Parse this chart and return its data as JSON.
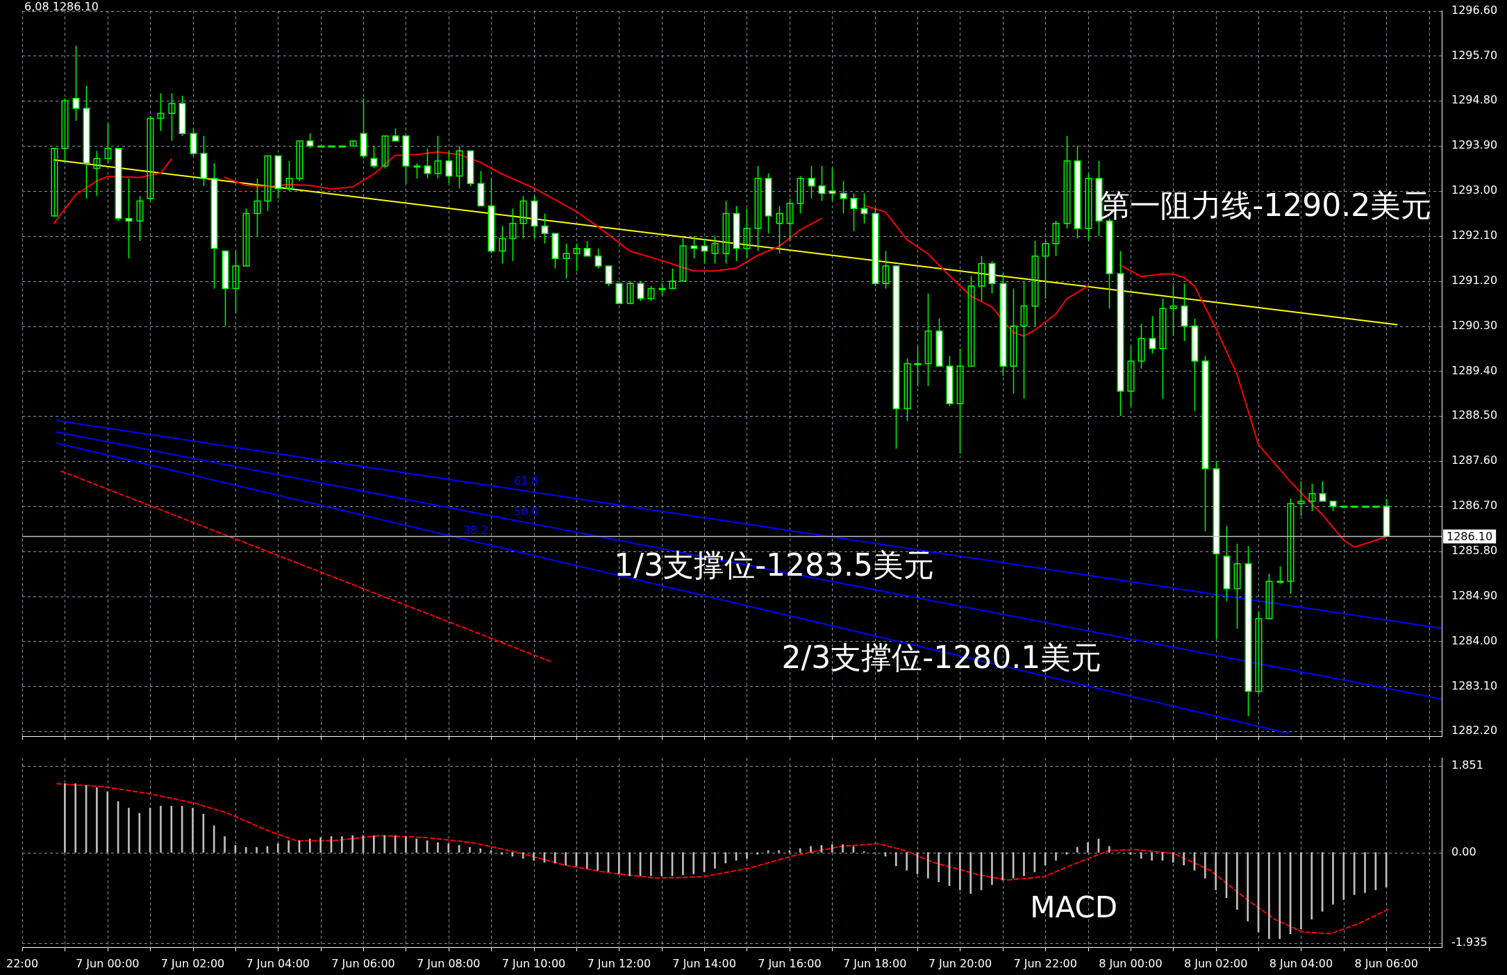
{
  "chart_data": [
    {
      "type": "candlestick",
      "color": "#00ff00",
      "colors": [
        "#00ff00",
        "#00ff00",
        "#ffffff",
        "#ffffff",
        "#00ff00",
        "#00ff00",
        "#ffffff",
        "#ffffff",
        "#00ff00",
        "#00ff00",
        "#00ff00",
        "#00ff00",
        "#ffffff",
        "#ffffff",
        "#ffffff",
        "#ffffff",
        "#ffffff",
        "#00ff00",
        "#00ff00",
        "#00ff00",
        "#00ff00",
        "#ffffff",
        "#00ff00",
        "#00ff00",
        "#ffffff",
        "#00ff00",
        "#00ff00",
        "#00ff00",
        "#00ff00",
        "#ffffff",
        "#ffffff",
        "#00ff00",
        "#ffffff",
        "#ffffff",
        "#00ff00",
        "#ffffff",
        "#00ff00",
        "#ffffff",
        "#00ff00",
        "#ffffff",
        "#ffffff",
        "#ffffff",
        "#00ff00",
        "#00ff00",
        "#00ff00",
        "#ffffff",
        "#ffffff",
        "#ffffff",
        "#00ff00",
        "#00ff00",
        "#ffffff",
        "#ffffff",
        "#ffffff",
        "#ffffff",
        "#00ff00",
        "#ffffff",
        "#00ff00",
        "#00ff00",
        "#00ff00",
        "#00ff00",
        "#ffffff",
        "#ffffff",
        "#00ff00",
        "#00ff00",
        "#ffffff",
        "#00ff00",
        "#00ff00",
        "#ffffff",
        "#00ff00",
        "#00ff00",
        "#00ff00",
        "#ffffff",
        "#ffffff",
        "#ffffff",
        "#ffffff",
        "#ffffff",
        "#ffffff",
        "#ffffff",
        "#00ff00",
        "#ffffff",
        "#00ff00",
        "#00ff00",
        "#00ff00",
        "#ffffff",
        "#ffffff",
        "#00ff00",
        "#00ff00",
        "#00ff00",
        "#ffffff",
        "#ffffff",
        "#00ff00",
        "#00ff00",
        "#00ff00",
        "#00ff00",
        "#00ff00",
        "#00ff00",
        "#ffffff",
        "#00ff00",
        "#ffffff",
        "#ffffff",
        "#ffffff",
        "#00ff00",
        "#00ff00",
        "#ffffff",
        "#00ff00",
        "#00ff00",
        "#ffffff",
        "#ffffff",
        "#ffffff",
        "#ffffff",
        "#ffffff",
        "#00ff00",
        "#ffffff",
        "#00ff00",
        "#00ff00",
        "#00ff00",
        "#00ff00",
        "#00ff00",
        "#00ff00",
        "#ffffff",
        "#ffffff",
        "#00ff00",
        "#00ff00",
        "#00ff00",
        "#00ff00",
        "#ffffff"
      ],
      "x": [
        "--06-06T22:45",
        "--06-06T23:00",
        "--06-06T23:15",
        "--06-06T23:30",
        "--06-06T23:45",
        "--06-07T00:00",
        "--06-07T00:15",
        "--06-07T00:30",
        "--06-07T00:45",
        "--06-07T01:00",
        "--06-07T01:15",
        "--06-07T01:30",
        "--06-07T01:45",
        "--06-07T02:00",
        "--06-07T02:15",
        "--06-07T02:30",
        "--06-07T02:45",
        "--06-07T03:00",
        "--06-07T03:15",
        "--06-07T03:30",
        "--06-07T03:45",
        "--06-07T04:00",
        "--06-07T04:15",
        "--06-07T04:30",
        "--06-07T04:45",
        "--06-07T05:00",
        "--06-07T05:15",
        "--06-07T05:30",
        "--06-07T05:45",
        "--06-07T06:00",
        "--06-07T06:15",
        "--06-07T06:30",
        "--06-07T06:45",
        "--06-07T07:00",
        "--06-07T07:15",
        "--06-07T07:30",
        "--06-07T07:45",
        "--06-07T08:00",
        "--06-07T08:15",
        "--06-07T08:30",
        "--06-07T08:45",
        "--06-07T09:00",
        "--06-07T09:15",
        "--06-07T09:30",
        "--06-07T09:45",
        "--06-07T10:00",
        "--06-07T10:15",
        "--06-07T10:30",
        "--06-07T10:45",
        "--06-07T11:00",
        "--06-07T11:15",
        "--06-07T11:30",
        "--06-07T11:45",
        "--06-07T12:00",
        "--06-07T12:15",
        "--06-07T12:30",
        "--06-07T12:45",
        "--06-07T13:00",
        "--06-07T13:15",
        "--06-07T13:30",
        "--06-07T13:45",
        "--06-07T14:00",
        "--06-07T14:15",
        "--06-07T14:30",
        "--06-07T14:45",
        "--06-07T15:00",
        "--06-07T15:15",
        "--06-07T15:30",
        "--06-07T15:45",
        "--06-07T16:00",
        "--06-07T16:15",
        "--06-07T16:30",
        "--06-07T16:45",
        "--06-07T17:00",
        "--06-07T17:15",
        "--06-07T17:30",
        "--06-07T17:45",
        "--06-07T18:00",
        "--06-07T18:15",
        "--06-07T18:30",
        "--06-07T18:45",
        "--06-07T19:00",
        "--06-07T19:15",
        "--06-07T19:30",
        "--06-07T19:45",
        "--06-07T20:00",
        "--06-07T20:15",
        "--06-07T20:30",
        "--06-07T20:45",
        "--06-07T21:00",
        "--06-07T21:15",
        "--06-07T21:30",
        "--06-07T21:45",
        "--06-07T22:00",
        "--06-07T22:15",
        "--06-07T22:30",
        "--06-07T22:45",
        "--06-07T23:00",
        "--06-07T23:15",
        "--06-07T23:30",
        "--06-07T23:45",
        "--06-08T00:00",
        "--06-08T00:15",
        "--06-08T00:30",
        "--06-08T00:45",
        "--06-08T01:00",
        "--06-08T01:15",
        "--06-08T01:30",
        "--06-08T01:45",
        "--06-08T02:00",
        "--06-08T02:15",
        "--06-08T02:30",
        "--06-08T02:45",
        "--06-08T03:00",
        "--06-08T03:15",
        "--06-08T03:30",
        "--06-08T03:45",
        "--06-08T04:00",
        "--06-08T04:15",
        "--06-08T04:30",
        "--06-08T04:45",
        "--06-08T05:00",
        "--06-08T05:15",
        "--06-08T05:30",
        "--06-08T05:45",
        "--06-08T06:00"
      ],
      "ohlc": [
        [
          1292.5,
          1293.85,
          1292.5,
          1293.85
        ],
        [
          1293.85,
          1294.85,
          1293.55,
          1294.8
        ],
        [
          1294.85,
          1295.9,
          1294.4,
          1294.65
        ],
        [
          1294.65,
          1295.1,
          1292.85,
          1293.55
        ],
        [
          1293.45,
          1293.8,
          1292.9,
          1293.65
        ],
        [
          1293.65,
          1294.35,
          1293.55,
          1293.85
        ],
        [
          1293.85,
          1293.85,
          1292.4,
          1292.45
        ],
        [
          1292.45,
          1293.25,
          1291.65,
          1292.4
        ],
        [
          1292.4,
          1292.9,
          1292.0,
          1292.8
        ],
        [
          1292.85,
          1294.5,
          1292.8,
          1294.45
        ],
        [
          1294.45,
          1294.95,
          1294.2,
          1294.55
        ],
        [
          1294.55,
          1294.95,
          1294.0,
          1294.75
        ],
        [
          1294.75,
          1294.9,
          1294.1,
          1294.15
        ],
        [
          1294.15,
          1294.25,
          1293.7,
          1293.75
        ],
        [
          1293.75,
          1294.1,
          1293.1,
          1293.25
        ],
        [
          1293.25,
          1293.55,
          1291.05,
          1291.85
        ],
        [
          1291.8,
          1291.8,
          1290.3,
          1291.05
        ],
        [
          1291.05,
          1291.8,
          1290.55,
          1291.5
        ],
        [
          1291.5,
          1292.65,
          1291.5,
          1292.55
        ],
        [
          1292.55,
          1293.25,
          1292.1,
          1292.8
        ],
        [
          1292.8,
          1293.7,
          1292.6,
          1293.7
        ],
        [
          1293.7,
          1293.7,
          1292.85,
          1293.05
        ],
        [
          1293.05,
          1293.6,
          1293.0,
          1293.25
        ],
        [
          1293.25,
          1294.0,
          1293.2,
          1294.0
        ],
        [
          1294.0,
          1294.15,
          1293.85,
          1293.9
        ],
        [
          1293.9,
          1293.9,
          1293.9,
          1293.9
        ],
        [
          1293.9,
          1293.9,
          1293.9,
          1293.9
        ],
        [
          1293.9,
          1293.9,
          1293.9,
          1293.9
        ],
        [
          1293.9,
          1294.0,
          1293.9,
          1294.0
        ],
        [
          1294.15,
          1294.85,
          1293.65,
          1293.7
        ],
        [
          1293.65,
          1293.9,
          1293.45,
          1293.5
        ],
        [
          1293.5,
          1294.1,
          1293.45,
          1294.1
        ],
        [
          1294.1,
          1294.25,
          1294.0,
          1294.0
        ],
        [
          1294.1,
          1294.1,
          1293.15,
          1293.5
        ],
        [
          1293.5,
          1293.55,
          1293.25,
          1293.5
        ],
        [
          1293.5,
          1293.85,
          1293.25,
          1293.35
        ],
        [
          1293.35,
          1294.1,
          1293.25,
          1293.6
        ],
        [
          1293.6,
          1293.8,
          1293.15,
          1293.3
        ],
        [
          1293.3,
          1293.9,
          1293.05,
          1293.8
        ],
        [
          1293.8,
          1293.8,
          1293.1,
          1293.15
        ],
        [
          1293.15,
          1293.4,
          1292.7,
          1292.7
        ],
        [
          1292.7,
          1293.25,
          1291.75,
          1291.8
        ],
        [
          1291.8,
          1292.3,
          1291.55,
          1292.05
        ],
        [
          1292.05,
          1292.65,
          1291.6,
          1292.35
        ],
        [
          1292.35,
          1292.9,
          1292.05,
          1292.8
        ],
        [
          1292.8,
          1292.9,
          1292.05,
          1292.3
        ],
        [
          1292.3,
          1292.55,
          1291.95,
          1292.15
        ],
        [
          1292.15,
          1292.15,
          1291.45,
          1291.65
        ],
        [
          1291.65,
          1291.95,
          1291.25,
          1291.75
        ],
        [
          1291.75,
          1291.95,
          1291.4,
          1291.85
        ],
        [
          1291.85,
          1292.0,
          1291.7,
          1291.7
        ],
        [
          1291.7,
          1291.85,
          1291.45,
          1291.5
        ],
        [
          1291.5,
          1291.5,
          1291.1,
          1291.15
        ],
        [
          1291.15,
          1291.15,
          1290.75,
          1290.75
        ],
        [
          1290.75,
          1291.2,
          1290.75,
          1291.15
        ],
        [
          1291.15,
          1291.2,
          1290.8,
          1290.85
        ],
        [
          1290.85,
          1291.1,
          1290.8,
          1291.05
        ],
        [
          1291.05,
          1291.15,
          1290.9,
          1291.05
        ],
        [
          1291.05,
          1291.45,
          1291.05,
          1291.2
        ],
        [
          1291.2,
          1292.05,
          1291.2,
          1291.9
        ],
        [
          1291.9,
          1292.1,
          1291.65,
          1291.85
        ],
        [
          1291.9,
          1292.05,
          1291.55,
          1291.8
        ],
        [
          1291.75,
          1292.1,
          1291.55,
          1291.95
        ],
        [
          1291.75,
          1292.8,
          1291.55,
          1292.55
        ],
        [
          1292.55,
          1292.7,
          1291.6,
          1291.85
        ],
        [
          1291.85,
          1292.65,
          1291.65,
          1292.25
        ],
        [
          1292.25,
          1293.5,
          1291.8,
          1293.25
        ],
        [
          1293.25,
          1293.35,
          1292.15,
          1292.5
        ],
        [
          1292.35,
          1292.7,
          1291.75,
          1292.55
        ],
        [
          1292.35,
          1292.85,
          1292.0,
          1292.75
        ],
        [
          1292.75,
          1293.3,
          1292.55,
          1293.25
        ],
        [
          1293.25,
          1293.5,
          1292.85,
          1293.1
        ],
        [
          1293.1,
          1293.5,
          1292.8,
          1292.95
        ],
        [
          1293.0,
          1293.45,
          1292.8,
          1292.95
        ],
        [
          1292.95,
          1293.2,
          1292.55,
          1292.85
        ],
        [
          1292.85,
          1292.95,
          1292.2,
          1292.65
        ],
        [
          1292.65,
          1292.95,
          1292.35,
          1292.55
        ],
        [
          1292.55,
          1292.65,
          1291.1,
          1291.15
        ],
        [
          1291.15,
          1291.8,
          1291.05,
          1291.5
        ],
        [
          1291.5,
          1291.5,
          1287.85,
          1288.65
        ],
        [
          1288.65,
          1289.65,
          1288.4,
          1289.55
        ],
        [
          1289.55,
          1289.9,
          1289.1,
          1289.55
        ],
        [
          1289.55,
          1290.95,
          1289.1,
          1290.2
        ],
        [
          1290.2,
          1290.45,
          1289.5,
          1289.5
        ],
        [
          1289.5,
          1289.7,
          1288.7,
          1288.75
        ],
        [
          1288.75,
          1289.85,
          1287.75,
          1289.5
        ],
        [
          1289.5,
          1291.3,
          1289.5,
          1291.1
        ],
        [
          1291.1,
          1291.7,
          1290.8,
          1291.55
        ],
        [
          1291.55,
          1291.6,
          1290.95,
          1291.15
        ],
        [
          1291.15,
          1291.35,
          1289.3,
          1289.5
        ],
        [
          1289.5,
          1291.05,
          1288.95,
          1290.3
        ],
        [
          1290.3,
          1291.2,
          1288.85,
          1290.7
        ],
        [
          1290.7,
          1292.0,
          1290.3,
          1291.7
        ],
        [
          1291.7,
          1292.0,
          1290.85,
          1291.95
        ],
        [
          1291.95,
          1292.4,
          1291.7,
          1292.35
        ],
        [
          1292.35,
          1294.1,
          1292.25,
          1293.6
        ],
        [
          1293.6,
          1293.9,
          1292.05,
          1292.25
        ],
        [
          1292.25,
          1293.35,
          1292.0,
          1293.25
        ],
        [
          1293.25,
          1293.6,
          1292.1,
          1292.4
        ],
        [
          1292.4,
          1292.45,
          1290.65,
          1291.35
        ],
        [
          1291.35,
          1291.8,
          1288.5,
          1289.0
        ],
        [
          1289.0,
          1289.9,
          1288.7,
          1289.6
        ],
        [
          1289.6,
          1290.35,
          1289.45,
          1290.05
        ],
        [
          1290.05,
          1290.5,
          1289.75,
          1289.85
        ],
        [
          1289.85,
          1290.85,
          1288.85,
          1290.65
        ],
        [
          1290.65,
          1291.1,
          1290.1,
          1290.7
        ],
        [
          1290.7,
          1291.15,
          1290.0,
          1290.3
        ],
        [
          1290.3,
          1290.45,
          1288.6,
          1289.6
        ],
        [
          1289.6,
          1289.7,
          1286.2,
          1287.45
        ],
        [
          1287.45,
          1287.6,
          1284.05,
          1285.75
        ],
        [
          1285.7,
          1286.3,
          1284.8,
          1285.05
        ],
        [
          1285.05,
          1285.95,
          1284.25,
          1285.55
        ],
        [
          1285.55,
          1285.9,
          1282.5,
          1283.0
        ],
        [
          1283.0,
          1284.6,
          1282.95,
          1284.45
        ],
        [
          1284.45,
          1285.35,
          1284.45,
          1285.2
        ],
        [
          1285.2,
          1285.5,
          1285.15,
          1285.2
        ],
        [
          1285.2,
          1286.85,
          1284.95,
          1286.75
        ],
        [
          1286.75,
          1287.2,
          1286.5,
          1286.8
        ],
        [
          1286.8,
          1287.15,
          1286.6,
          1286.95
        ],
        [
          1286.95,
          1287.2,
          1286.8,
          1286.8
        ],
        [
          1286.8,
          1286.8,
          1286.6,
          1286.7
        ],
        [
          1286.7,
          1286.7,
          1286.7,
          1286.7
        ],
        [
          1286.7,
          1286.7,
          1286.7,
          1286.7
        ],
        [
          1286.7,
          1286.7,
          1286.7,
          1286.7
        ],
        [
          1286.7,
          1286.7,
          1286.7,
          1286.7
        ],
        [
          1286.7,
          1286.85,
          1286.1,
          1286.1
        ]
      ],
      "series": [
        {
          "type": "line",
          "color": "#ff0000",
          "x": [
            "--06-06T22:45",
            "--06-06T23:15",
            "--06-06T23:45",
            "--06-07T00:00",
            "--06-07T00:45",
            "--06-07T01:15",
            "--06-07T01:30",
            "--06-07T02:00",
            "--06-07T02:15",
            "--06-07T02:45",
            "--06-07T03:15",
            "--06-07T03:45",
            "--06-07T04:15",
            "--06-07T04:45",
            "--06-07T05:15",
            "--06-07T05:45",
            "--06-07T06:15",
            "--06-07T06:45",
            "--06-07T07:15",
            "--06-07T07:45",
            "--06-07T08:15",
            "--06-07T08:45",
            "--06-07T09:15",
            "--06-07T10:00",
            "--06-07T11:00",
            "--06-07T11:30",
            "--06-07T12:15",
            "--06-07T13:00",
            "--06-07T13:45",
            "--06-07T14:15",
            "--06-07T14:45",
            "--06-07T15:15",
            "--06-07T15:45",
            "--06-07T16:15",
            "--06-07T16:45",
            "--06-07T17:30",
            "--06-07T17:45",
            "--06-07T18:15",
            "--06-07T18:45",
            "--06-07T19:15",
            "--06-07T19:45",
            "--06-07T20:15",
            "--06-07T20:45",
            "--06-07T21:15",
            "--06-07T21:30",
            "--06-07T21:45",
            "--06-07T22:15",
            "--06-07T22:30",
            "--06-07T23:00",
            "--06-07T23:30",
            "--06-07T23:45",
            "--06-08T00:15",
            "--06-08T00:45",
            "--06-08T01:00",
            "--06-08T01:15",
            "--06-08T01:30",
            "--06-08T02:00",
            "--06-08T02:30",
            "--06-08T03:00",
            "--06-08T03:45",
            "--06-08T04:30",
            "--06-08T05:00",
            "--06-08T05:15",
            "--06-08T05:45",
            "--06-08T06:00"
          ],
          "values": [
            1292.36,
            1292.92,
            1293.2,
            1293.29,
            1293.27,
            1293.36,
            1293.64,
            null,
            null,
            1293.27,
            1293.11,
            1293.09,
            1293.13,
            1293.11,
            1293.04,
            1293.08,
            1293.34,
            1293.71,
            1293.73,
            1293.78,
            1293.73,
            1293.57,
            1293.34,
            1293.06,
            1292.59,
            1292.29,
            1291.8,
            1291.61,
            1291.4,
            1291.4,
            1291.46,
            1291.71,
            1291.89,
            1292.22,
            1292.45,
            null,
            1292.71,
            1292.58,
            1292.03,
            1291.74,
            1291.31,
            1290.9,
            1290.68,
            1290.17,
            1290.1,
            1290.22,
            1290.54,
            1290.84,
            1291.1,
            null,
            1291.52,
            1291.29,
            1291.34,
            1291.34,
            1291.27,
            1291.1,
            1290.26,
            1289.33,
            1287.93,
            1287.19,
            1286.53,
            1286.02,
            1285.88,
            1286.02,
            1286.09
          ]
        },
        {
          "type": "line",
          "color": "#ffff00",
          "x": [
            "--06-06T22:45",
            "--06-08T06:15"
          ],
          "values": [
            1293.62,
            1290.33
          ]
        },
        {
          "type": "line",
          "name": "61.8",
          "color": "#0000ff",
          "x": [
            "--06-06T22:49",
            "--06-08T07:17"
          ],
          "values": [
            1288.41,
            1284.26
          ]
        },
        {
          "type": "line",
          "name": "50.0",
          "color": "#0000ff",
          "x": [
            "--06-06T22:49",
            "--06-08T07:17"
          ],
          "values": [
            1288.18,
            1282.85
          ]
        },
        {
          "type": "line",
          "name": "38.2",
          "color": "#0000ff",
          "x": [
            "--06-06T22:49",
            "--06-08T03:42"
          ],
          "values": [
            1287.96,
            1282.16
          ]
        },
        {
          "type": "line",
          "color": "#ff0000",
          "line_style": "dashed",
          "x": [
            "--06-06T22:55",
            "--06-07T10:23"
          ],
          "values": [
            1287.4,
            1283.6
          ]
        }
      ],
      "xlim": [
        "--06-06T22:00",
        "--06-08T07:18"
      ],
      "xticks": [
        {
          "value": "--06-06T22:00",
          "label": null
        },
        {
          "value": "--06-06T23:00",
          "label": null
        },
        {
          "value": "--06-07T00:00",
          "label": null
        },
        {
          "value": "--06-07T01:00",
          "label": null
        },
        {
          "value": "--06-07T02:00",
          "label": null
        },
        {
          "value": "--06-07T03:00",
          "label": null
        },
        {
          "value": "--06-07T04:00",
          "label": null
        },
        {
          "value": "--06-07T05:00",
          "label": null
        },
        {
          "value": "--06-07T06:00",
          "label": null
        },
        {
          "value": "--06-07T07:00",
          "label": null
        },
        {
          "value": "--06-07T08:00",
          "label": null
        },
        {
          "value": "--06-07T09:00",
          "label": null
        },
        {
          "value": "--06-07T10:00",
          "label": null
        },
        {
          "value": "--06-07T11:00",
          "label": null
        },
        {
          "value": "--06-07T12:00",
          "label": null
        },
        {
          "value": "--06-07T13:00",
          "label": null
        },
        {
          "value": "--06-07T14:00",
          "label": null
        },
        {
          "value": "--06-07T15:00",
          "label": null
        },
        {
          "value": "--06-07T16:00",
          "label": null
        },
        {
          "value": "--06-07T17:00",
          "label": null
        },
        {
          "value": "--06-07T18:00",
          "label": null
        },
        {
          "value": "--06-07T19:00",
          "label": null
        },
        {
          "value": "--06-07T20:00",
          "label": null
        },
        {
          "value": "--06-07T21:00",
          "label": null
        },
        {
          "value": "--06-07T22:00",
          "label": null
        },
        {
          "value": "--06-07T23:00",
          "label": null
        },
        {
          "value": "--06-08T00:00",
          "label": null
        },
        {
          "value": "--06-08T01:00",
          "label": null
        },
        {
          "value": "--06-08T02:00",
          "label": null
        },
        {
          "value": "--06-08T03:00",
          "label": null
        },
        {
          "value": "--06-08T04:00",
          "label": null
        },
        {
          "value": "--06-08T05:00",
          "label": null
        },
        {
          "value": "--06-08T06:00",
          "label": null
        },
        {
          "value": "--06-08T07:00",
          "label": null
        }
      ],
      "ylim": [
        1282.1,
        1296.6
      ],
      "yticks": [
        {
          "value": 1282.2,
          "label": "1282.20"
        },
        {
          "value": 1283.1,
          "label": "1283.10"
        },
        {
          "value": 1284,
          "label": "1284.00"
        },
        {
          "value": 1284.9,
          "label": "1284.90"
        },
        {
          "value": 1285.8,
          "label": "1285.80"
        },
        {
          "value": 1286.7,
          "label": "1286.70"
        },
        {
          "value": 1287.6,
          "label": "1287.60"
        },
        {
          "value": 1288.5,
          "label": "1288.50"
        },
        {
          "value": 1289.4,
          "label": "1289.40"
        },
        {
          "value": 1290.3,
          "label": "1290.30"
        },
        {
          "value": 1291.2,
          "label": "1291.20"
        },
        {
          "value": 1292.1,
          "label": "1292.10"
        },
        {
          "value": 1293,
          "label": "1293.00"
        },
        {
          "value": 1293.9,
          "label": "1293.90"
        },
        {
          "value": 1294.8,
          "label": "1294.80"
        },
        {
          "value": 1295.7,
          "label": "1295.70"
        },
        {
          "value": 1296.6,
          "label": "1296.60"
        }
      ],
      "grid": true,
      "tick_labels": "y",
      "ref_lines": [
        {
          "axis": "y",
          "value": 1286.1,
          "label": "1286.10",
          "color": "#c0c0c0"
        }
      ],
      "annotations": [
        "6,08 1286.10",
        "第一阻力线-1290.2美元",
        "1/3支撑位-1283.5美元",
        "2/3支撑位-1280.1美元"
      ]
    },
    {
      "type": "bar",
      "series": [
        {
          "type": "bar",
          "color": "#c0c0c0",
          "x": [
            "--06-06T23:00",
            "--06-06T23:15",
            "--06-06T23:30",
            "--06-06T23:45",
            "--06-07T00:00",
            "--06-07T00:15",
            "--06-07T00:30",
            "--06-07T00:45",
            "--06-07T01:00",
            "--06-07T01:15",
            "--06-07T01:30",
            "--06-07T01:45",
            "--06-07T02:00",
            "--06-07T02:15",
            "--06-07T02:30",
            "--06-07T02:45",
            "--06-07T03:00",
            "--06-07T03:15",
            "--06-07T03:30",
            "--06-07T03:45",
            "--06-07T04:00",
            "--06-07T04:15",
            "--06-07T04:30",
            "--06-07T04:45",
            "--06-07T05:00",
            "--06-07T05:15",
            "--06-07T05:30",
            "--06-07T05:45",
            "--06-07T06:00",
            "--06-07T06:15",
            "--06-07T06:30",
            "--06-07T06:45",
            "--06-07T07:00",
            "--06-07T07:15",
            "--06-07T07:30",
            "--06-07T07:45",
            "--06-07T08:00",
            "--06-07T08:15",
            "--06-07T08:30",
            "--06-07T08:45",
            "--06-07T09:00",
            "--06-07T09:15",
            "--06-07T09:30",
            "--06-07T09:45",
            "--06-07T10:00",
            "--06-07T10:15",
            "--06-07T10:30",
            "--06-07T10:45",
            "--06-07T11:00",
            "--06-07T11:15",
            "--06-07T11:30",
            "--06-07T11:45",
            "--06-07T12:00",
            "--06-07T12:15",
            "--06-07T12:30",
            "--06-07T12:45",
            "--06-07T13:00",
            "--06-07T13:15",
            "--06-07T13:30",
            "--06-07T13:45",
            "--06-07T14:00",
            "--06-07T14:15",
            "--06-07T14:30",
            "--06-07T14:45",
            "--06-07T15:00",
            "--06-07T15:15",
            "--06-07T15:30",
            "--06-07T15:45",
            "--06-07T16:00",
            "--06-07T16:15",
            "--06-07T16:30",
            "--06-07T16:45",
            "--06-07T17:00",
            "--06-07T17:15",
            "--06-07T17:30",
            "--06-07T17:45",
            "--06-07T18:00",
            "--06-07T18:15",
            "--06-07T18:30",
            "--06-07T18:45",
            "--06-07T19:00",
            "--06-07T19:15",
            "--06-07T19:30",
            "--06-07T19:45",
            "--06-07T20:00",
            "--06-07T20:15",
            "--06-07T20:30",
            "--06-07T20:45",
            "--06-07T21:00",
            "--06-07T21:15",
            "--06-07T21:30",
            "--06-07T21:45",
            "--06-07T22:00",
            "--06-07T22:15",
            "--06-07T22:30",
            "--06-07T22:45",
            "--06-07T23:00",
            "--06-07T23:15",
            "--06-07T23:30",
            "--06-07T23:45",
            "--06-08T00:00",
            "--06-08T00:15",
            "--06-08T00:30",
            "--06-08T00:45",
            "--06-08T01:00",
            "--06-08T01:15",
            "--06-08T01:30",
            "--06-08T01:45",
            "--06-08T02:00",
            "--06-08T02:15",
            "--06-08T02:30",
            "--06-08T02:45",
            "--06-08T03:00",
            "--06-08T03:15",
            "--06-08T03:30",
            "--06-08T03:45",
            "--06-08T04:00",
            "--06-08T04:15",
            "--06-08T04:30",
            "--06-08T04:45",
            "--06-08T05:00",
            "--06-08T05:15",
            "--06-08T05:30",
            "--06-08T05:45",
            "--06-08T06:00"
          ],
          "values": [
            1.47,
            1.47,
            1.43,
            1.39,
            1.3,
            1.09,
            0.95,
            0.84,
            0.95,
            0.99,
            0.99,
            0.99,
            0.95,
            0.82,
            0.57,
            0.34,
            0.15,
            0.11,
            0.11,
            0.13,
            0.19,
            0.25,
            0.25,
            0.29,
            0.32,
            0.34,
            0.34,
            0.36,
            0.36,
            0.36,
            0.36,
            0.36,
            0.34,
            0.29,
            0.25,
            0.21,
            0.19,
            0.15,
            0.11,
            0.08,
            0.04,
            -0.04,
            -0.08,
            -0.13,
            -0.17,
            -0.21,
            -0.23,
            -0.27,
            -0.29,
            -0.34,
            -0.38,
            -0.42,
            -0.46,
            -0.5,
            -0.5,
            -0.5,
            -0.5,
            -0.5,
            -0.48,
            -0.46,
            -0.42,
            -0.34,
            -0.23,
            -0.17,
            -0.13,
            -0.04,
            0.04,
            0.04,
            0.04,
            0.08,
            0.13,
            0.15,
            0.17,
            0.17,
            0.13,
            0.02,
            0,
            -0.08,
            -0.29,
            -0.38,
            -0.46,
            -0.55,
            -0.63,
            -0.71,
            -0.8,
            -0.88,
            -0.8,
            -0.69,
            -0.59,
            -0.55,
            -0.5,
            -0.42,
            -0.27,
            -0.17,
            -0.04,
            0.11,
            0.21,
            0.29,
            0.13,
            0,
            -0.04,
            -0.13,
            -0.17,
            -0.17,
            -0.21,
            -0.27,
            -0.38,
            -0.55,
            -0.8,
            -0.97,
            -1.22,
            -1.47,
            -1.7,
            -1.85,
            -1.85,
            -1.74,
            -1.64,
            -1.43,
            -1.26,
            -1.11,
            -1.01,
            -0.9,
            -0.86,
            -0.8,
            -0.74
          ]
        },
        {
          "type": "line",
          "color": "#ff0000",
          "line_style": "dashed",
          "x": [
            "--06-06T22:49",
            "--06-06T23:53",
            "--06-07T00:58",
            "--06-07T02:04",
            "--06-07T02:49",
            "--06-07T03:47",
            "--06-07T04:26",
            "--06-07T05:18",
            "--06-07T06:23",
            "--06-07T07:28",
            "--06-07T08:33",
            "--06-07T09:38",
            "--06-07T10:43",
            "--06-07T11:48",
            "--06-07T12:53",
            "--06-07T13:58",
            "--06-07T15:02",
            "--06-07T16:08",
            "--06-07T17:13",
            "--06-07T18:04",
            "--06-07T18:43",
            "--06-07T19:22",
            "--06-07T20:27",
            "--06-07T21:06",
            "--06-07T21:58",
            "--06-07T22:37",
            "--06-07T23:29",
            "--06-08T00:08",
            "--06-08T01:00",
            "--06-08T01:52",
            "--06-08T02:44",
            "--06-08T03:23",
            "--06-08T04:02",
            "--06-08T04:41",
            "--06-08T05:20",
            "--06-08T06:02"
          ],
          "values": [
            1.47,
            1.41,
            1.26,
            1.05,
            0.84,
            0.46,
            0.25,
            0.25,
            0.36,
            0.32,
            0.21,
            0,
            -0.27,
            -0.44,
            -0.55,
            -0.52,
            -0.34,
            -0.06,
            0.13,
            0.19,
            0.04,
            -0.21,
            -0.48,
            -0.59,
            -0.52,
            -0.27,
            0.04,
            0.06,
            -0.02,
            -0.38,
            -1.01,
            -1.43,
            -1.7,
            -1.74,
            -1.53,
            -1.22
          ]
        }
      ],
      "xlim": [
        "--06-06T22:00",
        "--06-08T07:18"
      ],
      "xticks": [
        {
          "value": "--06-06T22:00",
          "label": "22:00"
        },
        {
          "value": "--06-06T23:00",
          "label": null
        },
        {
          "value": "--06-07T00:00",
          "label": "7 Jun 00:00"
        },
        {
          "value": "--06-07T01:00",
          "label": null
        },
        {
          "value": "--06-07T02:00",
          "label": "7 Jun 02:00"
        },
        {
          "value": "--06-07T03:00",
          "label": null
        },
        {
          "value": "--06-07T04:00",
          "label": "7 Jun 04:00"
        },
        {
          "value": "--06-07T05:00",
          "label": null
        },
        {
          "value": "--06-07T06:00",
          "label": "7 Jun 06:00"
        },
        {
          "value": "--06-07T07:00",
          "label": null
        },
        {
          "value": "--06-07T08:00",
          "label": "7 Jun 08:00"
        },
        {
          "value": "--06-07T09:00",
          "label": null
        },
        {
          "value": "--06-07T10:00",
          "label": "7 Jun 10:00"
        },
        {
          "value": "--06-07T11:00",
          "label": null
        },
        {
          "value": "--06-07T12:00",
          "label": "7 Jun 12:00"
        },
        {
          "value": "--06-07T13:00",
          "label": null
        },
        {
          "value": "--06-07T14:00",
          "label": "7 Jun 14:00"
        },
        {
          "value": "--06-07T15:00",
          "label": null
        },
        {
          "value": "--06-07T16:00",
          "label": "7 Jun 16:00"
        },
        {
          "value": "--06-07T17:00",
          "label": null
        },
        {
          "value": "--06-07T18:00",
          "label": "7 Jun 18:00"
        },
        {
          "value": "--06-07T19:00",
          "label": null
        },
        {
          "value": "--06-07T20:00",
          "label": "7 Jun 20:00"
        },
        {
          "value": "--06-07T21:00",
          "label": null
        },
        {
          "value": "--06-07T22:00",
          "label": "7 Jun 22:00"
        },
        {
          "value": "--06-07T23:00",
          "label": null
        },
        {
          "value": "--06-08T00:00",
          "label": "8 Jun 00:00"
        },
        {
          "value": "--06-08T01:00",
          "label": null
        },
        {
          "value": "--06-08T02:00",
          "label": "8 Jun 02:00"
        },
        {
          "value": "--06-08T03:00",
          "label": null
        },
        {
          "value": "--06-08T04:00",
          "label": "8 Jun 04:00"
        },
        {
          "value": "--06-08T05:00",
          "label": null
        },
        {
          "value": "--06-08T06:00",
          "label": "8 Jun 06:00"
        },
        {
          "value": "--06-08T07:00",
          "label": null
        }
      ],
      "ylim": [
        -2.04,
        2.02
      ],
      "yticks": [
        {
          "value": 1.851,
          "label": "1.851"
        },
        {
          "value": 0,
          "label": "0.00"
        },
        {
          "value": -1.935,
          "label": "-1.935"
        }
      ],
      "grid": true,
      "annotations": [
        "MACD"
      ]
    }
  ]
}
